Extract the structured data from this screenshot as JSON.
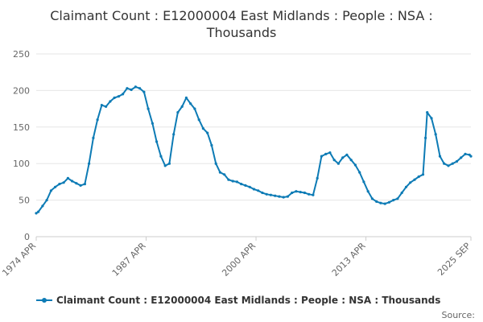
{
  "chart_data": {
    "type": "line",
    "title": "Claimant Count : E12000004 East Midlands : People : NSA :",
    "title_line2": "Thousands",
    "xlabel": "",
    "ylabel": "",
    "ylim": [
      0,
      250
    ],
    "y_ticks": [
      "0",
      "50",
      "100",
      "150",
      "200",
      "250"
    ],
    "x_tick_labels": [
      "1974 APR",
      "1987 APR",
      "2000 APR",
      "2013 APR",
      "2025 SEP"
    ],
    "grid": true,
    "legend_position": "bottom",
    "series": [
      {
        "name": "Claimant Count : E12000004 East Midlands : People : NSA : Thousands",
        "color": "#0d7bb5",
        "x": [
          1974.25,
          1974.5,
          1975.0,
          1975.5,
          1976.0,
          1976.5,
          1977.0,
          1977.5,
          1978.0,
          1978.5,
          1979.0,
          1979.5,
          1980.0,
          1980.5,
          1981.0,
          1981.5,
          1982.0,
          1982.5,
          1983.0,
          1983.5,
          1984.0,
          1984.5,
          1985.0,
          1985.5,
          1986.0,
          1986.5,
          1987.0,
          1987.5,
          1988.0,
          1988.5,
          1989.0,
          1989.5,
          1990.0,
          1990.5,
          1991.0,
          1991.5,
          1992.0,
          1992.5,
          1993.0,
          1993.5,
          1994.0,
          1994.5,
          1995.0,
          1995.5,
          1996.0,
          1996.5,
          1997.0,
          1997.5,
          1998.0,
          1998.5,
          1999.0,
          1999.5,
          2000.0,
          2000.5,
          2001.0,
          2001.5,
          2002.0,
          2002.5,
          2003.0,
          2003.5,
          2004.0,
          2004.5,
          2005.0,
          2005.5,
          2006.0,
          2006.5,
          2007.0,
          2007.5,
          2008.0,
          2008.5,
          2009.0,
          2009.5,
          2010.0,
          2010.5,
          2011.0,
          2011.5,
          2012.0,
          2012.5,
          2013.0,
          2013.5,
          2014.0,
          2014.5,
          2015.0,
          2015.5,
          2016.0,
          2016.5,
          2017.0,
          2017.5,
          2018.0,
          2018.5,
          2019.0,
          2019.5,
          2020.0,
          2020.3,
          2020.5,
          2021.0,
          2021.5,
          2022.0,
          2022.5,
          2023.0,
          2023.5,
          2024.0,
          2024.5,
          2025.0,
          2025.5,
          2025.67
        ],
        "values": [
          32,
          34,
          42,
          50,
          63,
          68,
          72,
          74,
          80,
          76,
          73,
          70,
          72,
          100,
          135,
          160,
          180,
          178,
          185,
          190,
          192,
          195,
          203,
          201,
          205,
          203,
          198,
          175,
          155,
          130,
          110,
          97,
          100,
          140,
          170,
          178,
          190,
          182,
          175,
          160,
          148,
          142,
          125,
          100,
          88,
          85,
          78,
          76,
          75,
          72,
          70,
          68,
          65,
          63,
          60,
          58,
          57,
          56,
          55,
          54,
          55,
          60,
          62,
          61,
          60,
          58,
          57,
          80,
          110,
          113,
          115,
          105,
          100,
          108,
          112,
          105,
          98,
          88,
          75,
          62,
          52,
          48,
          46,
          45,
          47,
          50,
          52,
          60,
          68,
          74,
          78,
          82,
          85,
          135,
          170,
          162,
          140,
          110,
          100,
          97,
          100,
          103,
          108,
          113,
          112,
          110
        ]
      }
    ]
  },
  "footer": {
    "source_label": "Source:"
  }
}
